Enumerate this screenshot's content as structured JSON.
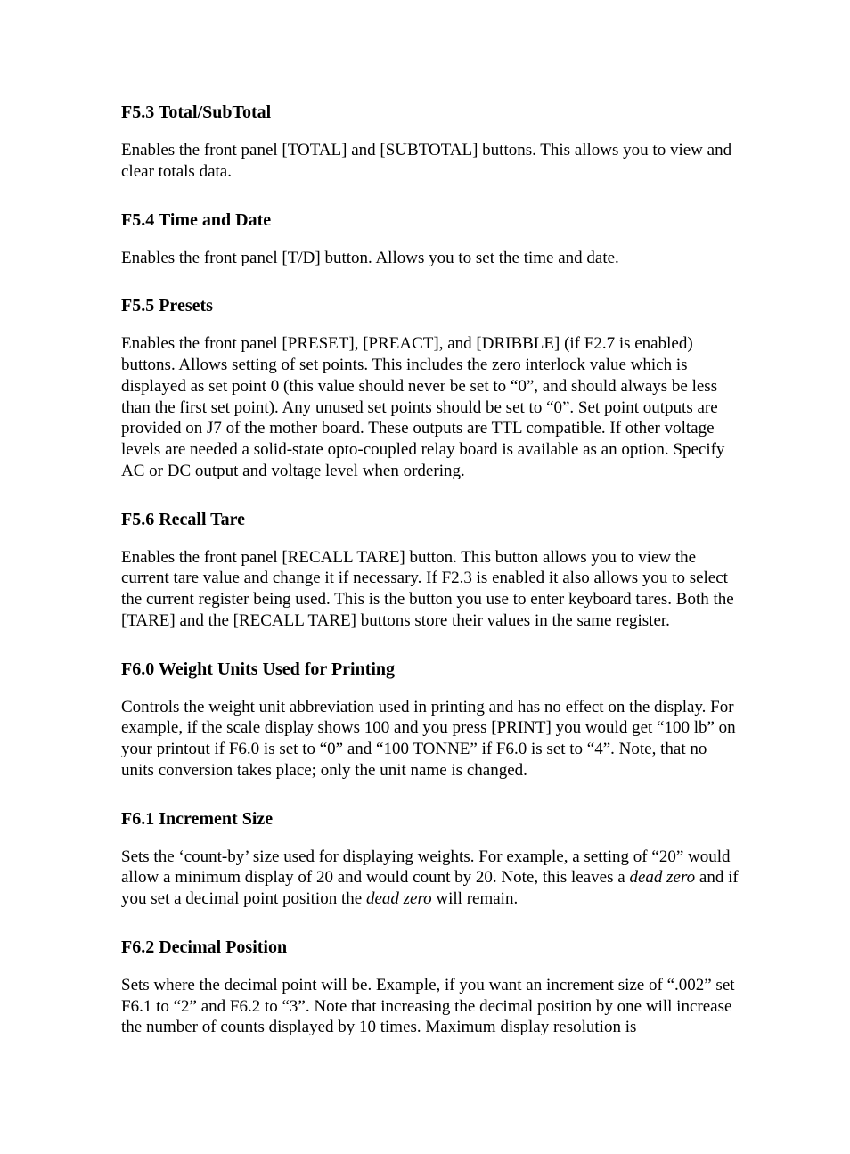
{
  "sections": [
    {
      "heading": "F5.3 Total/SubTotal",
      "body": "Enables the front panel [TOTAL] and [SUBTOTAL] buttons. This allows you to view and clear totals data."
    },
    {
      "heading": "F5.4 Time and Date",
      "body": "Enables the front panel [T/D] button. Allows you to set the time and date."
    },
    {
      "heading": "F5.5 Presets",
      "body": "Enables the front panel [PRESET], [PREACT], and [DRIBBLE] (if F2.7 is enabled) buttons. Allows setting of set points. This includes the zero interlock value which is displayed as set point 0 (this value should never be set to “0”, and should always be less than the first set point). Any unused set points should be set to “0”. Set point outputs are provided on J7 of the mother board. These outputs are TTL compatible. If other voltage levels are needed a solid-state opto-coupled relay board is available as an option. Specify AC or DC output and voltage level when ordering."
    },
    {
      "heading": "F5.6 Recall Tare",
      "body": "Enables the front panel [RECALL TARE] button. This button allows you to view the current tare value and change it if necessary. If F2.3 is enabled it also allows you to select the current register being used. This is the button you use to enter keyboard tares. Both the [TARE] and the [RECALL TARE] buttons store their values in the same register."
    },
    {
      "heading": "F6.0 Weight Units Used for Printing",
      "body": "Controls the weight unit abbreviation used in printing and has no effect on the display. For example, if the scale display shows 100 and you press [PRINT] you would get “100 lb” on your printout if F6.0 is set to “0” and “100 TONNE” if F6.0 is set to “4”. Note, that no units conversion takes place; only the unit name is changed."
    },
    {
      "heading": "F6.1 Increment Size",
      "body_parts": [
        {
          "t": "Sets the ‘count-by’ size used for displaying weights. For example, a setting of “20” would allow a minimum display of 20 and would count by 20. Note, this leaves a ",
          "i": false
        },
        {
          "t": "dead zero",
          "i": true
        },
        {
          "t": " and if you set a decimal point position the ",
          "i": false
        },
        {
          "t": "dead zero",
          "i": true
        },
        {
          "t": " will remain.",
          "i": false
        }
      ]
    },
    {
      "heading": "F6.2 Decimal Position",
      "body": "Sets where the decimal point will be. Example, if you want an increment size of “.002” set F6.1 to “2” and F6.2 to “3”. Note that increasing the decimal position by one will increase the number of counts displayed by 10 times. Maximum display resolution is"
    }
  ]
}
